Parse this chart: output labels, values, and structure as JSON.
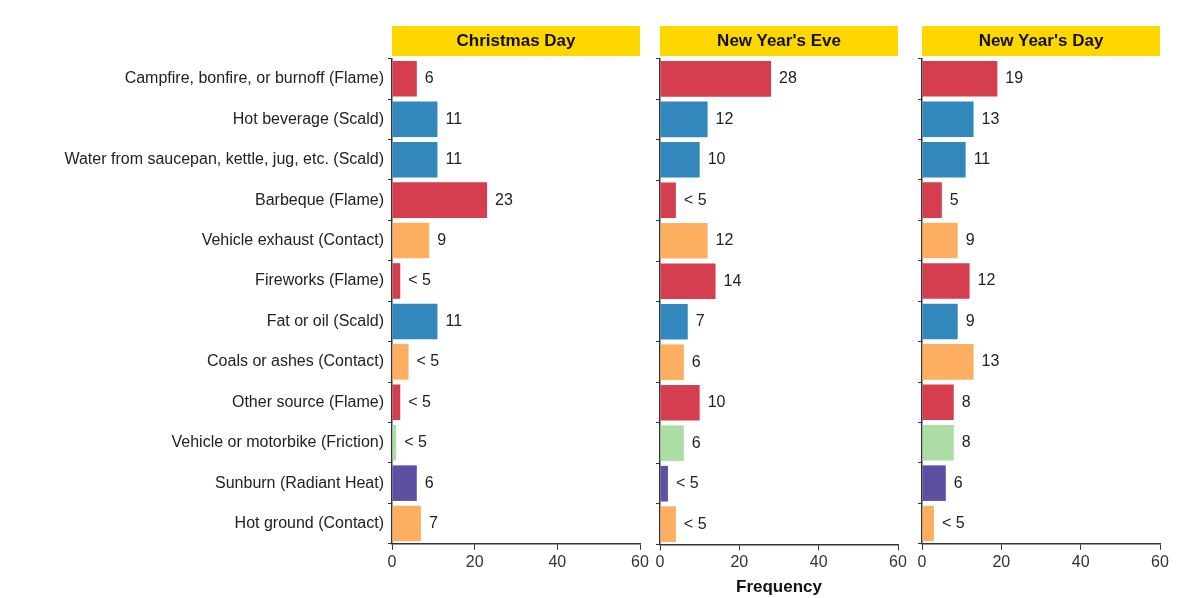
{
  "chart_data": [
    {
      "type": "bar",
      "orientation": "horizontal",
      "title": "Christmas Day",
      "categories": [
        "Campfire, bonfire, or burnoff (Flame)",
        "Hot beverage (Scald)",
        "Water from saucepan, kettle, jug, etc. (Scald)",
        "Barbeque (Flame)",
        "Vehicle exhaust (Contact)",
        "Fireworks (Flame)",
        "Fat or oil (Scald)",
        "Coals or ashes (Contact)",
        "Other source (Flame)",
        "Vehicle or motorbike (Friction)",
        "Sunburn (Radiant Heat)",
        "Hot ground (Contact)"
      ],
      "values": [
        6,
        11,
        11,
        23,
        9,
        2,
        11,
        4,
        2,
        1,
        6,
        7
      ],
      "value_labels": [
        "6",
        "11",
        "11",
        "23",
        "9",
        "< 5",
        "11",
        "< 5",
        "< 5",
        "< 5",
        "6",
        "7"
      ],
      "colors": [
        "#d53e4f",
        "#3288bd",
        "#3288bd",
        "#d53e4f",
        "#fdae61",
        "#d53e4f",
        "#3288bd",
        "#fdae61",
        "#d53e4f",
        "#abdda4",
        "#5e4fa2",
        "#fdae61"
      ],
      "xlim": [
        0,
        60
      ],
      "xticks": [
        0,
        20,
        40,
        60
      ]
    },
    {
      "type": "bar",
      "orientation": "horizontal",
      "title": "New Year's Eve",
      "xlabel": "Frequency",
      "tick_labels": "x",
      "categories": [
        null,
        null,
        null,
        null,
        null,
        null,
        null,
        null,
        null,
        null,
        null,
        null
      ],
      "values": [
        28,
        12,
        10,
        4,
        12,
        14,
        7,
        6,
        10,
        6,
        2,
        4
      ],
      "value_labels": [
        "28",
        "12",
        "10",
        "< 5",
        "12",
        "14",
        "7",
        "6",
        "10",
        "6",
        "< 5",
        "< 5"
      ],
      "colors": [
        "#d53e4f",
        "#3288bd",
        "#3288bd",
        "#d53e4f",
        "#fdae61",
        "#d53e4f",
        "#3288bd",
        "#fdae61",
        "#d53e4f",
        "#abdda4",
        "#5e4fa2",
        "#fdae61"
      ],
      "xlim": [
        0,
        60
      ],
      "xticks": [
        0,
        20,
        40,
        60
      ]
    },
    {
      "type": "bar",
      "orientation": "horizontal",
      "title": "New Year's Day",
      "tick_labels": "x",
      "categories": [
        null,
        null,
        null,
        null,
        null,
        null,
        null,
        null,
        null,
        null,
        null,
        null
      ],
      "values": [
        19,
        13,
        11,
        5,
        9,
        12,
        9,
        13,
        8,
        8,
        6,
        3
      ],
      "value_labels": [
        "19",
        "13",
        "11",
        "5",
        "9",
        "12",
        "9",
        "13",
        "8",
        "8",
        "6",
        "< 5"
      ],
      "colors": [
        "#d53e4f",
        "#3288bd",
        "#3288bd",
        "#d53e4f",
        "#fdae61",
        "#d53e4f",
        "#3288bd",
        "#fdae61",
        "#d53e4f",
        "#abdda4",
        "#5e4fa2",
        "#fdae61"
      ],
      "xlim": [
        0,
        60
      ],
      "xticks": [
        0,
        20,
        40,
        60
      ]
    }
  ]
}
